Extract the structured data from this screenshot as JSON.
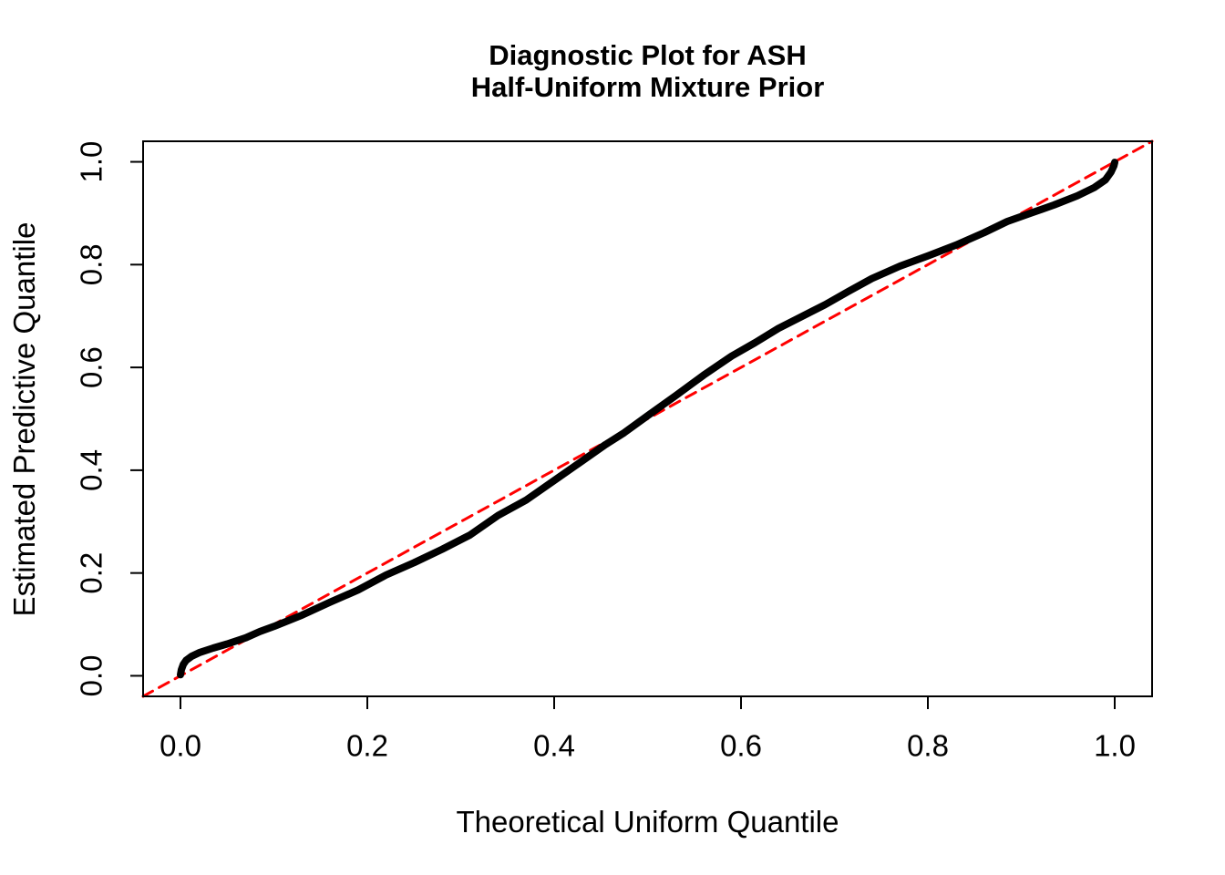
{
  "title": {
    "line1": "Diagnostic Plot for ASH",
    "line2": "Half-Uniform Mixture Prior"
  },
  "chart_data": {
    "type": "line",
    "subtype": "qq-plot",
    "title": "Diagnostic Plot for ASH\nHalf-Uniform Mixture Prior",
    "xlabel": "Theoretical Uniform Quantile",
    "ylabel": "Estimated Predictive Quantile",
    "xlim": [
      -0.04,
      1.04
    ],
    "ylim": [
      -0.04,
      1.04
    ],
    "grid": false,
    "legend": "none",
    "background": "#FFFFFF",
    "box_color": "#000000",
    "x_ticks": {
      "values": [
        0.0,
        0.2,
        0.4,
        0.6,
        0.8,
        1.0
      ],
      "labels": [
        "0.0",
        "0.2",
        "0.4",
        "0.6",
        "0.8",
        "1.0"
      ]
    },
    "y_ticks": {
      "values": [
        0.0,
        0.2,
        0.4,
        0.6,
        0.8,
        1.0
      ],
      "labels": [
        "0.0",
        "0.2",
        "0.4",
        "0.6",
        "0.8",
        "1.0"
      ]
    },
    "series": [
      {
        "name": "reference-line-y-equals-x",
        "type": "line",
        "style": "dashed",
        "color": "#FF0000",
        "stroke_width": 3,
        "dash": [
          12,
          8
        ],
        "points": [
          [
            -0.04,
            -0.04
          ],
          [
            1.04,
            1.04
          ]
        ]
      },
      {
        "name": "estimated-vs-theoretical-quantiles",
        "type": "line",
        "style": "solid",
        "color": "#000000",
        "stroke_width": 8,
        "dash": null,
        "points": [
          [
            0.0,
            0.002
          ],
          [
            0.001,
            0.012
          ],
          [
            0.003,
            0.022
          ],
          [
            0.006,
            0.03
          ],
          [
            0.012,
            0.038
          ],
          [
            0.02,
            0.045
          ],
          [
            0.035,
            0.054
          ],
          [
            0.05,
            0.062
          ],
          [
            0.07,
            0.074
          ],
          [
            0.085,
            0.086
          ],
          [
            0.1,
            0.096
          ],
          [
            0.13,
            0.118
          ],
          [
            0.16,
            0.143
          ],
          [
            0.19,
            0.167
          ],
          [
            0.22,
            0.196
          ],
          [
            0.25,
            0.22
          ],
          [
            0.28,
            0.246
          ],
          [
            0.31,
            0.274
          ],
          [
            0.34,
            0.312
          ],
          [
            0.37,
            0.342
          ],
          [
            0.4,
            0.38
          ],
          [
            0.43,
            0.418
          ],
          [
            0.455,
            0.45
          ],
          [
            0.475,
            0.473
          ],
          [
            0.5,
            0.506
          ],
          [
            0.53,
            0.545
          ],
          [
            0.56,
            0.585
          ],
          [
            0.59,
            0.622
          ],
          [
            0.615,
            0.648
          ],
          [
            0.64,
            0.676
          ],
          [
            0.665,
            0.699
          ],
          [
            0.69,
            0.722
          ],
          [
            0.715,
            0.748
          ],
          [
            0.74,
            0.773
          ],
          [
            0.77,
            0.797
          ],
          [
            0.8,
            0.817
          ],
          [
            0.83,
            0.838
          ],
          [
            0.86,
            0.862
          ],
          [
            0.885,
            0.884
          ],
          [
            0.91,
            0.9
          ],
          [
            0.935,
            0.916
          ],
          [
            0.96,
            0.934
          ],
          [
            0.978,
            0.95
          ],
          [
            0.99,
            0.965
          ],
          [
            0.996,
            0.98
          ],
          [
            0.999,
            0.992
          ],
          [
            1.0,
            0.999
          ]
        ]
      }
    ]
  }
}
